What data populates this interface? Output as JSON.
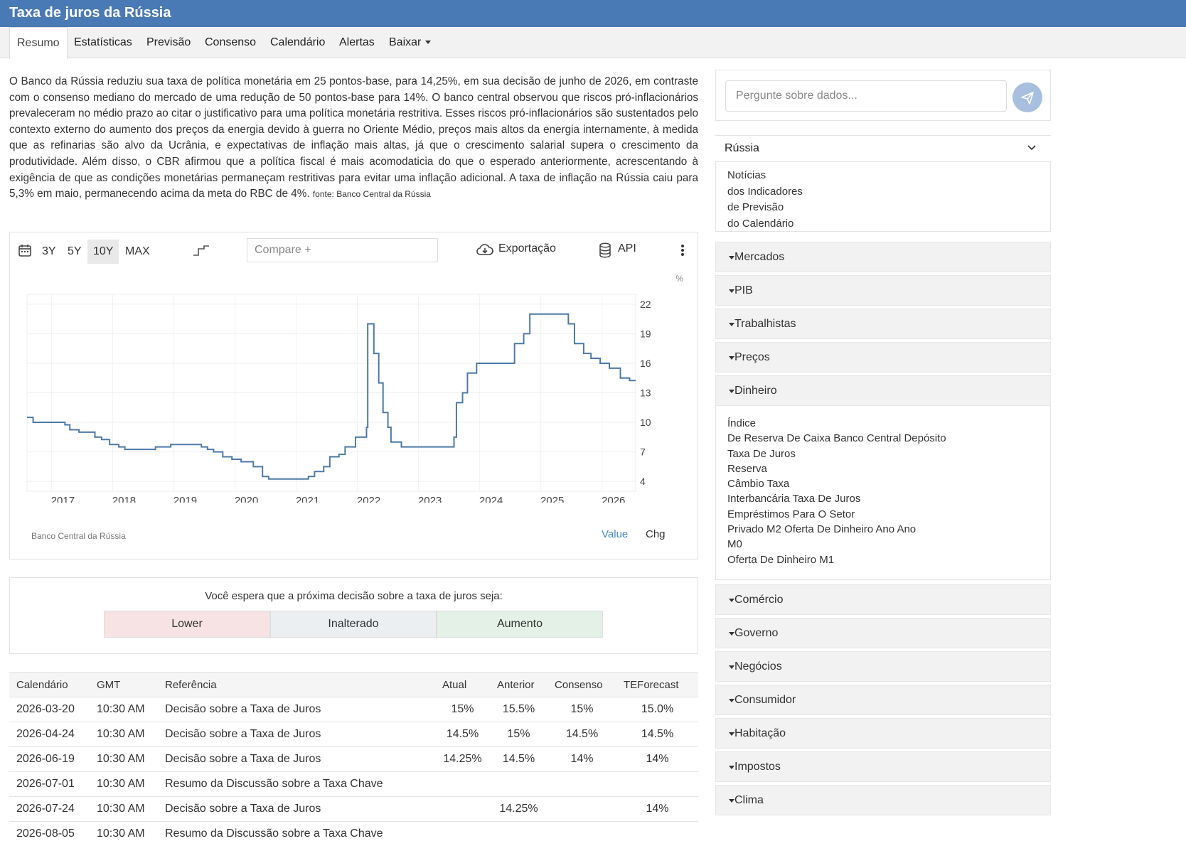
{
  "header": {
    "title": "Taxa de juros da Rússia"
  },
  "nav": {
    "tabs": [
      {
        "label": "Resumo"
      },
      {
        "label": "Estatísticas"
      },
      {
        "label": "Previsão"
      },
      {
        "label": "Consenso"
      },
      {
        "label": "Calendário"
      },
      {
        "label": "Alertas"
      },
      {
        "label": "Baixar"
      }
    ],
    "active": "Resumo"
  },
  "summary": {
    "text": "O Banco da Rússia reduziu sua taxa de política monetária em 25 pontos-base, para 14,25%, em sua decisão de junho de 2026, em contraste com o consenso mediano do mercado de uma redução de 50 pontos-base para 14%. O banco central observou que riscos pró-inflacionários prevaleceram no médio prazo ao citar o justificativo para uma política monetária restritiva. Esses riscos pró-inflacionários são sustentados pelo contexto externo do aumento dos preços da energia devido à guerra no Oriente Médio, preços mais altos da energia internamente, à medida que as refinarias são alvo da Ucrânia, e expectativas de inflação mais altas, já que o crescimento salarial supera o crescimento da produtividade. Além disso, o CBR afirmou que a política fiscal é mais acomodaticia do que o esperado anteriormente, acrescentando à exigência de que as condições monetárias permaneçam restritivas para evitar uma inflação adicional. A taxa de inflação na Rússia caiu para 5,3% em maio, permanecendo acima da meta do RBC de 4%.",
    "source": "fonte: Banco Central da Rússia"
  },
  "chart_toolbar": {
    "ranges": [
      "3Y",
      "5Y",
      "10Y",
      "MAX"
    ],
    "active_range": "10Y",
    "compare_placeholder": "Compare +",
    "export_label": "Exportação",
    "api_label": "API",
    "icons": [
      "calendar-icon",
      "step-chart-icon",
      "cloud-download-icon",
      "database-icon",
      "more-vertical-icon"
    ]
  },
  "chart_data": {
    "type": "line",
    "step": true,
    "unit": "%",
    "source": "Banco Central da Rússia",
    "toggle": [
      "Value",
      "Chg"
    ],
    "active_toggle": "Value",
    "x_ticks": [
      "2017",
      "2018",
      "2019",
      "2020",
      "2021",
      "2022",
      "2023",
      "2024",
      "2025",
      "2026"
    ],
    "y_ticks": [
      4,
      7,
      10,
      13,
      16,
      19,
      22
    ],
    "ylim": [
      3,
      23
    ],
    "xlim": [
      2016.6,
      2026.55
    ],
    "grid": true,
    "color": "#4d7aa8",
    "series": [
      {
        "values": [
          [
            2016.6,
            10.5
          ],
          [
            2016.7,
            10.0
          ],
          [
            2016.8,
            10.0
          ],
          [
            2017.22,
            9.75
          ],
          [
            2017.3,
            9.25
          ],
          [
            2017.45,
            9.0
          ],
          [
            2017.71,
            8.5
          ],
          [
            2017.82,
            8.25
          ],
          [
            2017.95,
            7.75
          ],
          [
            2018.1,
            7.5
          ],
          [
            2018.2,
            7.25
          ],
          [
            2018.7,
            7.5
          ],
          [
            2018.95,
            7.75
          ],
          [
            2019.45,
            7.5
          ],
          [
            2019.55,
            7.25
          ],
          [
            2019.65,
            7.0
          ],
          [
            2019.8,
            6.5
          ],
          [
            2019.95,
            6.25
          ],
          [
            2020.1,
            6.0
          ],
          [
            2020.3,
            5.5
          ],
          [
            2020.45,
            4.5
          ],
          [
            2020.55,
            4.25
          ],
          [
            2021.2,
            4.5
          ],
          [
            2021.3,
            5.0
          ],
          [
            2021.45,
            5.5
          ],
          [
            2021.55,
            6.5
          ],
          [
            2021.7,
            6.75
          ],
          [
            2021.8,
            7.5
          ],
          [
            2021.97,
            8.5
          ],
          [
            2022.15,
            9.5
          ],
          [
            2022.17,
            20.0
          ],
          [
            2022.27,
            17.0
          ],
          [
            2022.35,
            14.0
          ],
          [
            2022.42,
            11.0
          ],
          [
            2022.5,
            9.5
          ],
          [
            2022.55,
            8.0
          ],
          [
            2022.72,
            7.5
          ],
          [
            2023.58,
            8.5
          ],
          [
            2023.62,
            12.0
          ],
          [
            2023.72,
            13.0
          ],
          [
            2023.8,
            15.0
          ],
          [
            2023.95,
            16.0
          ],
          [
            2024.57,
            18.0
          ],
          [
            2024.72,
            19.0
          ],
          [
            2024.82,
            21.0
          ],
          [
            2025.45,
            20.0
          ],
          [
            2025.55,
            18.0
          ],
          [
            2025.7,
            17.0
          ],
          [
            2025.82,
            16.5
          ],
          [
            2025.97,
            16.0
          ],
          [
            2026.12,
            15.5
          ],
          [
            2026.3,
            14.5
          ],
          [
            2026.45,
            14.25
          ],
          [
            2026.55,
            14.25
          ]
        ]
      }
    ]
  },
  "vote": {
    "question": "Você espera que a próxima decisão sobre a taxa de juros seja:",
    "options": [
      {
        "label": "Lower",
        "color": "#f7e3e3"
      },
      {
        "label": "Inalterado",
        "color": "#eceff2"
      },
      {
        "label": "Aumento",
        "color": "#e4f1e6"
      }
    ]
  },
  "calendar": {
    "headers": [
      "Calendário",
      "GMT",
      "Referência",
      "Atual",
      "Anterior",
      "Consenso",
      "TEForecast"
    ],
    "rows": [
      [
        "2026-03-20",
        "10:30 AM",
        "Decisão sobre a Taxa de Juros",
        "15%",
        "15.5%",
        "15%",
        "15.0%"
      ],
      [
        "2026-04-24",
        "10:30 AM",
        "Decisão sobre a Taxa de Juros",
        "14.5%",
        "15%",
        "14.5%",
        "14.5%"
      ],
      [
        "2026-06-19",
        "10:30 AM",
        "Decisão sobre a Taxa de Juros",
        "14.25%",
        "14.5%",
        "14%",
        "14%"
      ],
      [
        "2026-07-01",
        "10:30 AM",
        "Resumo da Discussão sobre a Taxa Chave",
        "",
        "",
        "",
        ""
      ],
      [
        "2026-07-24",
        "10:30 AM",
        "Decisão sobre a Taxa de Juros",
        "",
        "14.25%",
        "",
        "14%"
      ],
      [
        "2026-08-05",
        "10:30 AM",
        "Resumo da Discussão sobre a Taxa Chave",
        "",
        "",
        "",
        ""
      ]
    ]
  },
  "sidebar": {
    "ask_placeholder": "Pergunte sobre dados...",
    "country": "Rússia",
    "country_links": [
      "Notícias",
      "dos Indicadores",
      "de Previsão",
      "do Calendário"
    ],
    "categories": [
      {
        "label": "Mercados"
      },
      {
        "label": "PIB"
      },
      {
        "label": "Trabalhistas"
      },
      {
        "label": "Preços"
      },
      {
        "label": "Dinheiro",
        "expanded": true,
        "items": [
          "Índice",
          "De Reserva De Caixa Banco Central Depósito",
          "Taxa De Juros",
          "Reserva",
          "Câmbio Taxa",
          "Interbancária Taxa De Juros",
          "Empréstimos Para O Setor",
          "Privado M2 Oferta De Dinheiro Ano Ano",
          "M0",
          "Oferta De Dinheiro M1"
        ]
      },
      {
        "label": "Comércio"
      },
      {
        "label": "Governo"
      },
      {
        "label": "Negócios"
      },
      {
        "label": "Consumidor"
      },
      {
        "label": "Habitação"
      },
      {
        "label": "Impostos"
      },
      {
        "label": "Clima"
      }
    ]
  }
}
